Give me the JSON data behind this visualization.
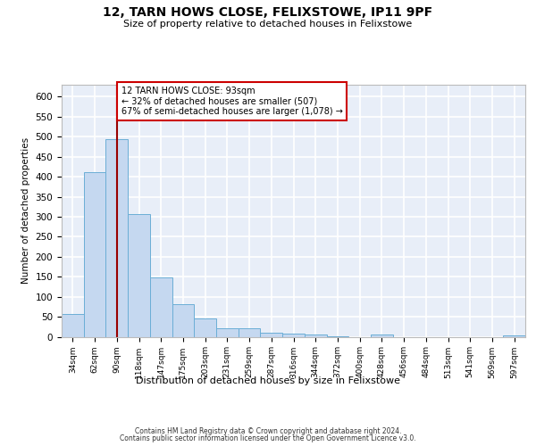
{
  "title_line1": "12, TARN HOWS CLOSE, FELIXSTOWE, IP11 9PF",
  "title_line2": "Size of property relative to detached houses in Felixstowe",
  "xlabel": "Distribution of detached houses by size in Felixstowe",
  "ylabel": "Number of detached properties",
  "categories": [
    "34sqm",
    "62sqm",
    "90sqm",
    "118sqm",
    "147sqm",
    "175sqm",
    "203sqm",
    "231sqm",
    "259sqm",
    "287sqm",
    "316sqm",
    "344sqm",
    "372sqm",
    "400sqm",
    "428sqm",
    "456sqm",
    "484sqm",
    "513sqm",
    "541sqm",
    "569sqm",
    "597sqm"
  ],
  "values": [
    57,
    412,
    495,
    307,
    148,
    82,
    45,
    22,
    22,
    10,
    7,
    6,
    1,
    0,
    6,
    0,
    0,
    0,
    0,
    0,
    3
  ],
  "bar_color": "#c5d8f0",
  "bar_edge_color": "#6baed6",
  "property_line_x": 2,
  "property_line_color": "#990000",
  "annotation_text": "12 TARN HOWS CLOSE: 93sqm\n← 32% of detached houses are smaller (507)\n67% of semi-detached houses are larger (1,078) →",
  "annotation_box_facecolor": "white",
  "annotation_box_edgecolor": "#cc0000",
  "ylim": [
    0,
    630
  ],
  "yticks": [
    0,
    50,
    100,
    150,
    200,
    250,
    300,
    350,
    400,
    450,
    500,
    550,
    600
  ],
  "background_color": "#e8eef8",
  "grid_color": "white",
  "footer_line1": "Contains HM Land Registry data © Crown copyright and database right 2024.",
  "footer_line2": "Contains public sector information licensed under the Open Government Licence v3.0."
}
